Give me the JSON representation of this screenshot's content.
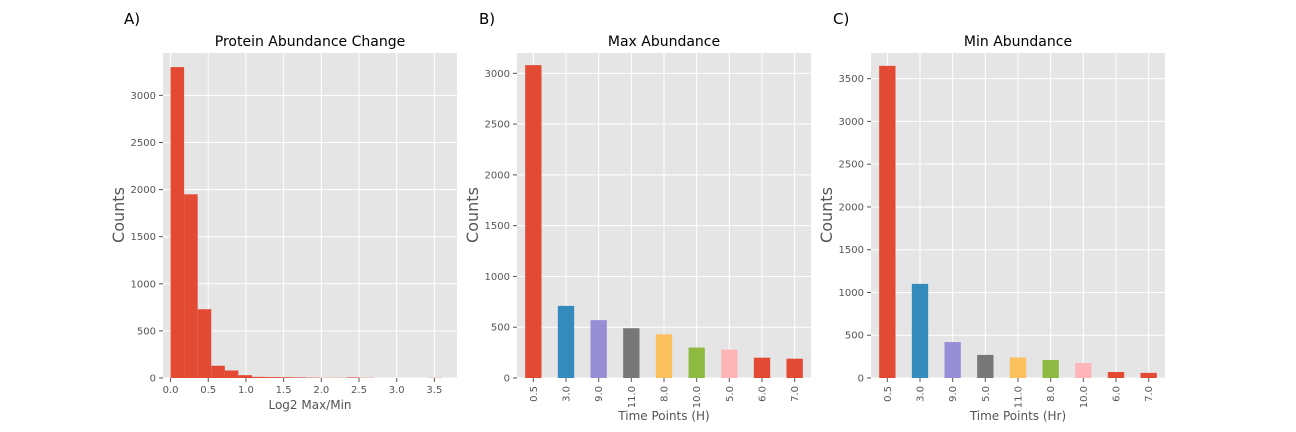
{
  "chart_data": [
    {
      "panel": "A)",
      "type": "bar",
      "title": "Protein Abundance Change",
      "xlabel": "Log2 Max/Min",
      "ylabel": "Counts",
      "xlim": [
        -0.1,
        3.8
      ],
      "ylim": [
        0,
        3450
      ],
      "xticks": [
        0.0,
        0.5,
        1.0,
        1.5,
        2.0,
        2.5,
        3.0,
        3.5
      ],
      "xtick_labels": [
        "0.0",
        "0.5",
        "1.0",
        "1.5",
        "2.0",
        "2.5",
        "3.0",
        "3.5"
      ],
      "yticks": [
        0,
        500,
        1000,
        1500,
        2000,
        2500,
        3000
      ],
      "ytick_labels": [
        "0",
        "500",
        "1000",
        "1500",
        "2000",
        "2500",
        "3000"
      ],
      "bin_width": 0.18,
      "bin_starts": [
        0.0,
        0.18,
        0.36,
        0.54,
        0.72,
        0.9,
        1.08,
        1.26,
        1.44,
        1.62,
        1.8,
        1.98,
        2.16,
        2.34,
        2.52,
        2.7,
        2.88,
        3.06,
        3.24,
        3.42
      ],
      "values": [
        3300,
        1950,
        730,
        130,
        80,
        30,
        12,
        10,
        8,
        6,
        4,
        2,
        2,
        6,
        2,
        0,
        0,
        0,
        0,
        2
      ],
      "color": "#E24A33",
      "grid": true
    },
    {
      "panel": "B)",
      "type": "bar",
      "title": "Max Abundance",
      "xlabel": "Time Points (H)",
      "ylabel": "Counts",
      "ylim": [
        0,
        3200
      ],
      "yticks": [
        0,
        500,
        1000,
        1500,
        2000,
        2500,
        3000
      ],
      "ytick_labels": [
        "0",
        "500",
        "1000",
        "1500",
        "2000",
        "2500",
        "3000"
      ],
      "categories": [
        "0.5",
        "3.0",
        "9.0",
        "11.0",
        "8.0",
        "10.0",
        "5.0",
        "6.0",
        "7.0"
      ],
      "values": [
        3080,
        710,
        570,
        490,
        430,
        300,
        280,
        200,
        190
      ],
      "colors": [
        "#E24A33",
        "#348ABD",
        "#988ED5",
        "#777777",
        "#FBC15E",
        "#8EBA42",
        "#FFB5B8",
        "#E24A33",
        "#E24A33"
      ],
      "grid": true
    },
    {
      "panel": "C)",
      "type": "bar",
      "title": "Min Abundance",
      "xlabel": "Time Points (Hr)",
      "ylabel": "Counts",
      "ylim": [
        0,
        3800
      ],
      "yticks": [
        0,
        500,
        1000,
        1500,
        2000,
        2500,
        3000,
        3500
      ],
      "ytick_labels": [
        "0",
        "500",
        "1000",
        "1500",
        "2000",
        "2500",
        "3000",
        "3500"
      ],
      "categories": [
        "0.5",
        "3.0",
        "9.0",
        "5.0",
        "11.0",
        "8.0",
        "10.0",
        "6.0",
        "7.0"
      ],
      "values": [
        3650,
        1100,
        420,
        270,
        240,
        210,
        175,
        70,
        60
      ],
      "colors": [
        "#E24A33",
        "#348ABD",
        "#988ED5",
        "#777777",
        "#FBC15E",
        "#8EBA42",
        "#FFB5B8",
        "#E24A33",
        "#E24A33"
      ],
      "grid": true
    }
  ]
}
